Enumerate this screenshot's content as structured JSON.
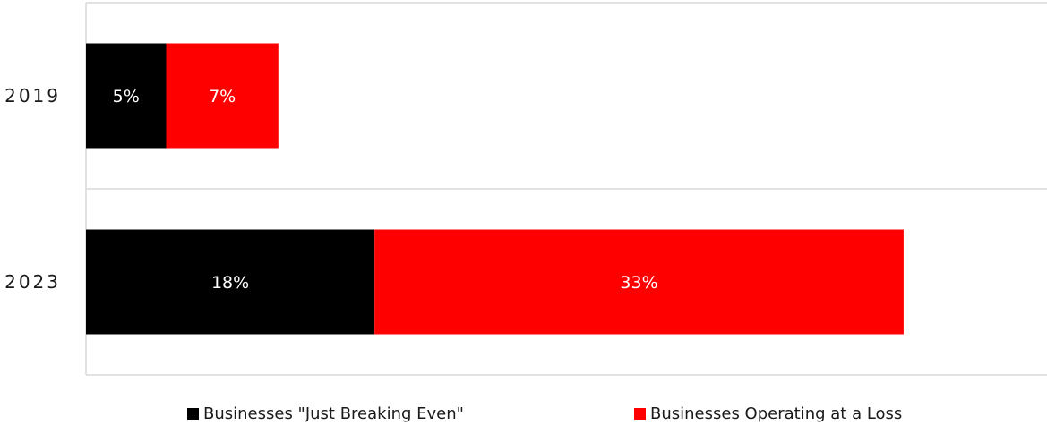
{
  "chart_data": {
    "type": "bar",
    "orientation": "horizontal",
    "stacked": true,
    "title": "",
    "xlabel": "",
    "ylabel": "",
    "categories": [
      "2019",
      "2023"
    ],
    "series": [
      {
        "name": "Businesses \"Just Breaking Even\"",
        "values": [
          5,
          18
        ],
        "labels": [
          "5%",
          "18%"
        ],
        "color": "#000000"
      },
      {
        "name": "Businesses Operating at a Loss",
        "values": [
          7,
          33
        ],
        "labels": [
          "7%",
          "33%"
        ],
        "color": "#ff0000"
      }
    ],
    "xlim": [
      0,
      60
    ],
    "grid": true,
    "legend_position": "bottom"
  }
}
